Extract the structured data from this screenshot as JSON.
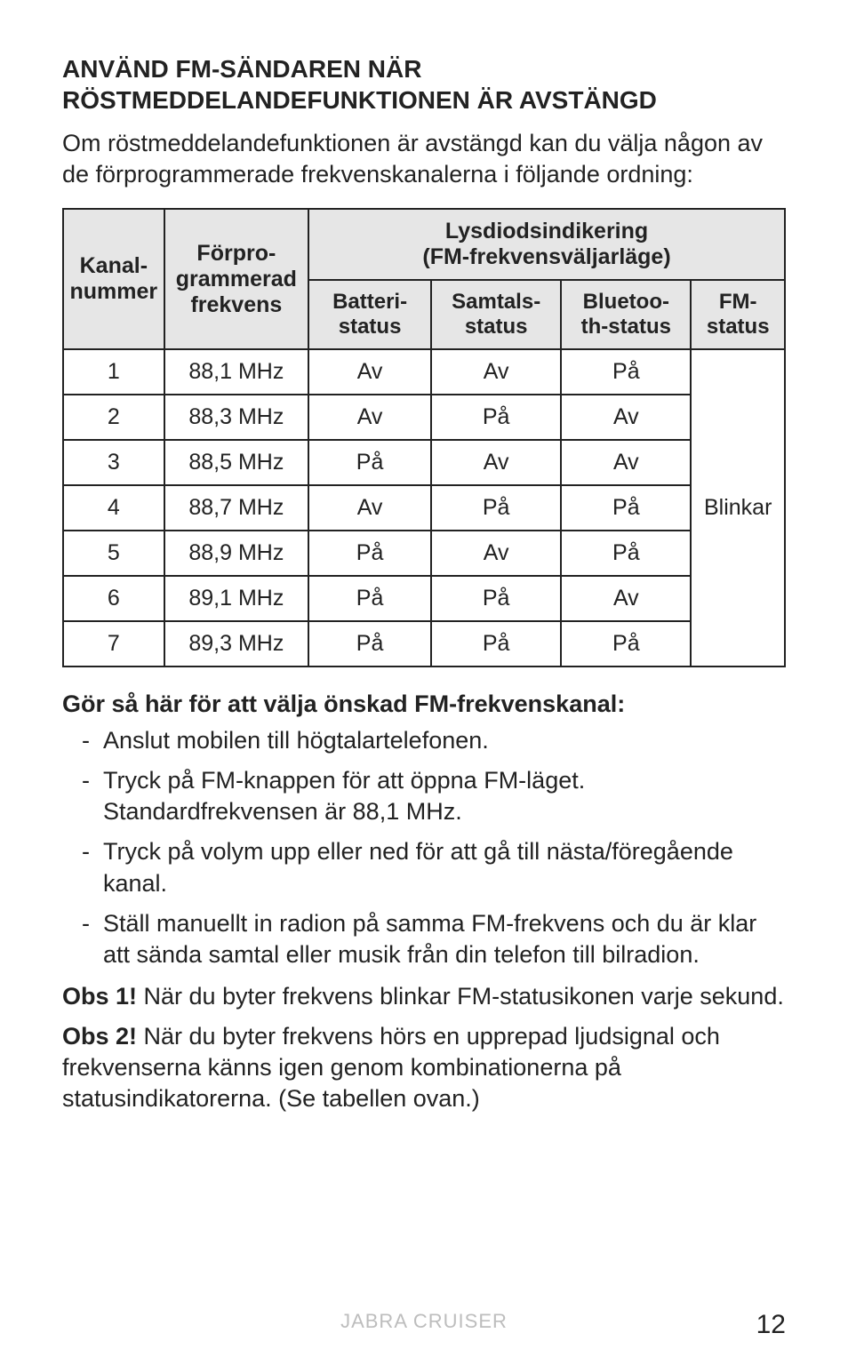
{
  "heading": "ANVÄND FM-SÄNDAREN NÄR RÖSTMEDDELANDEFUNKTIONEN ÄR AVSTÄNGD",
  "intro": "Om röstmeddelandefunktionen är avstängd kan du välja någon av de förprogrammerade frekvenskanalerna i följande ordning:",
  "table": {
    "col_channel": "Kanal-\nnummer",
    "col_freq": "Förpro-\ngrammerad\nfrekvens",
    "col_group": "Lysdiodsindikering\n(FM-frekvensväljarläge)",
    "col_batt": "Batteri-\nstatus",
    "col_call": "Samtals-\nstatus",
    "col_bt": "Bluetoo-\nth-status",
    "col_fm": "FM-\nstatus",
    "rows": [
      {
        "n": "1",
        "f": "88,1 MHz",
        "b": "Av",
        "c": "Av",
        "bt": "På"
      },
      {
        "n": "2",
        "f": "88,3 MHz",
        "b": "Av",
        "c": "På",
        "bt": "Av"
      },
      {
        "n": "3",
        "f": "88,5 MHz",
        "b": "På",
        "c": "Av",
        "bt": "Av"
      },
      {
        "n": "4",
        "f": "88,7 MHz",
        "b": "Av",
        "c": "På",
        "bt": "På"
      },
      {
        "n": "5",
        "f": "88,9 MHz",
        "b": "På",
        "c": "Av",
        "bt": "På"
      },
      {
        "n": "6",
        "f": "89,1 MHz",
        "b": "På",
        "c": "På",
        "bt": "Av"
      },
      {
        "n": "7",
        "f": "89,3 MHz",
        "b": "På",
        "c": "På",
        "bt": "På"
      }
    ],
    "fm_status_value": "Blinkar"
  },
  "subheading": "Gör så här för att välja önskad FM-frekvenskanal:",
  "steps": [
    "Anslut mobilen till högtalartelefonen.",
    "Tryck på FM-knappen för att öppna FM-läget. Standardfrekvensen är 88,1 MHz.",
    "Tryck på volym upp eller ned för att gå till nästa/föregående kanal.",
    "Ställ manuellt in radion på samma FM-frekvens och du är klar att sända samtal eller musik från din telefon till bilradion."
  ],
  "note1_label": "Obs 1!",
  "note1_text": " När du byter frekvens blinkar FM-statusikonen varje sekund.",
  "note2_label": "Obs 2!",
  "note2_text": " När du byter frekvens hörs en upprepad ljudsignal och frekvenserna känns igen genom kombinationerna på statusindikatorerna. (Se tabellen ovan.)",
  "footer": "JABRA CRUISER",
  "page_number": "12",
  "colors": {
    "text": "#222222",
    "header_bg": "#e6e6e6",
    "border": "#222222",
    "footer": "#bdbdbd",
    "page_bg": "#ffffff"
  }
}
